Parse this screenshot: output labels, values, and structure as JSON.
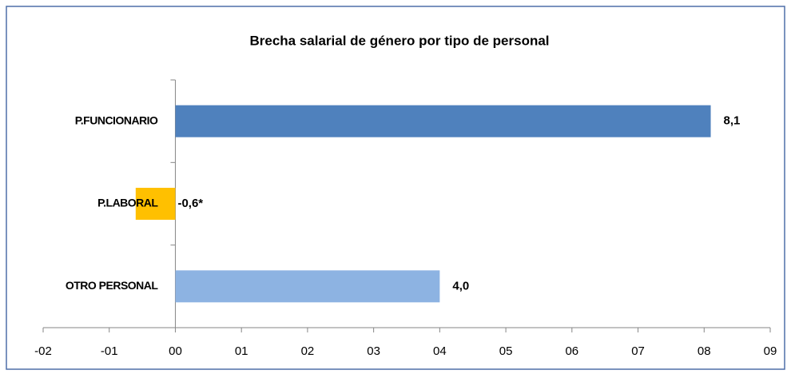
{
  "chart_data": {
    "type": "bar",
    "orientation": "horizontal",
    "title": "Brecha salarial  de género por tipo de personal",
    "categories": [
      "P.FUNCIONARIO",
      "P.LABORAL",
      "OTRO PERSONAL"
    ],
    "values": [
      8.1,
      -0.6,
      4.0
    ],
    "value_labels": [
      "8,1",
      "-0,6*",
      "4,0"
    ],
    "colors": [
      "#4f81bd",
      "#ffc000",
      "#8db3e2"
    ],
    "xlim": [
      -2,
      9
    ],
    "xticks": [
      {
        "value": -2,
        "label": "-02"
      },
      {
        "value": -1,
        "label": "-01"
      },
      {
        "value": 0,
        "label": "00"
      },
      {
        "value": 1,
        "label": "01"
      },
      {
        "value": 2,
        "label": "02"
      },
      {
        "value": 3,
        "label": "03"
      },
      {
        "value": 4,
        "label": "04"
      },
      {
        "value": 5,
        "label": "05"
      },
      {
        "value": 6,
        "label": "06"
      },
      {
        "value": 7,
        "label": "07"
      },
      {
        "value": 8,
        "label": "08"
      },
      {
        "value": 9,
        "label": "09"
      }
    ],
    "grid": false
  }
}
